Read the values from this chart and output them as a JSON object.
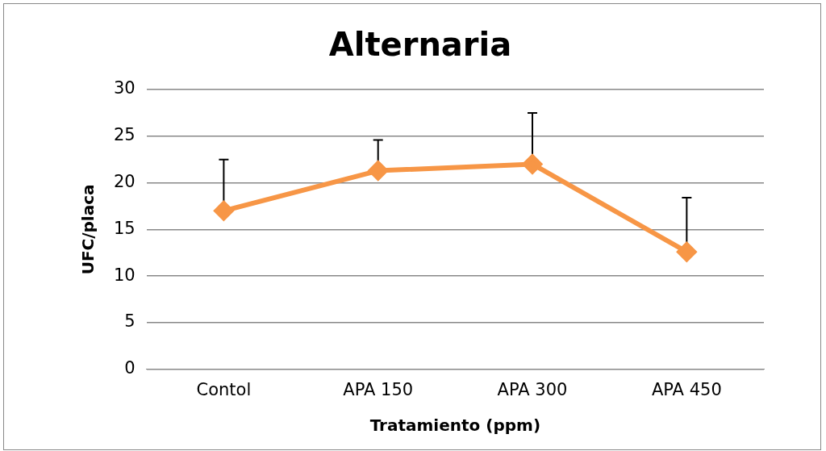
{
  "chart_data": {
    "type": "line",
    "title": "Alternaria",
    "xlabel": "Tratamiento (ppm)",
    "ylabel": "UFC/placa",
    "categories": [
      "Contol",
      "APA 150",
      "APA 300",
      "APA 450"
    ],
    "series": [
      {
        "color": "#f79646",
        "values": [
          17,
          21.3,
          22,
          12.6
        ],
        "errors": [
          [
            17,
            22.5
          ],
          [
            21.3,
            24.6
          ],
          [
            22,
            27.5
          ],
          [
            12.6,
            18.4
          ]
        ]
      }
    ],
    "ylim": [
      0,
      30
    ],
    "yticks": [
      0,
      5,
      10,
      15,
      20,
      25,
      30
    ],
    "grid": "y",
    "legend": false,
    "marker": "diamond",
    "line_style": "solid"
  }
}
